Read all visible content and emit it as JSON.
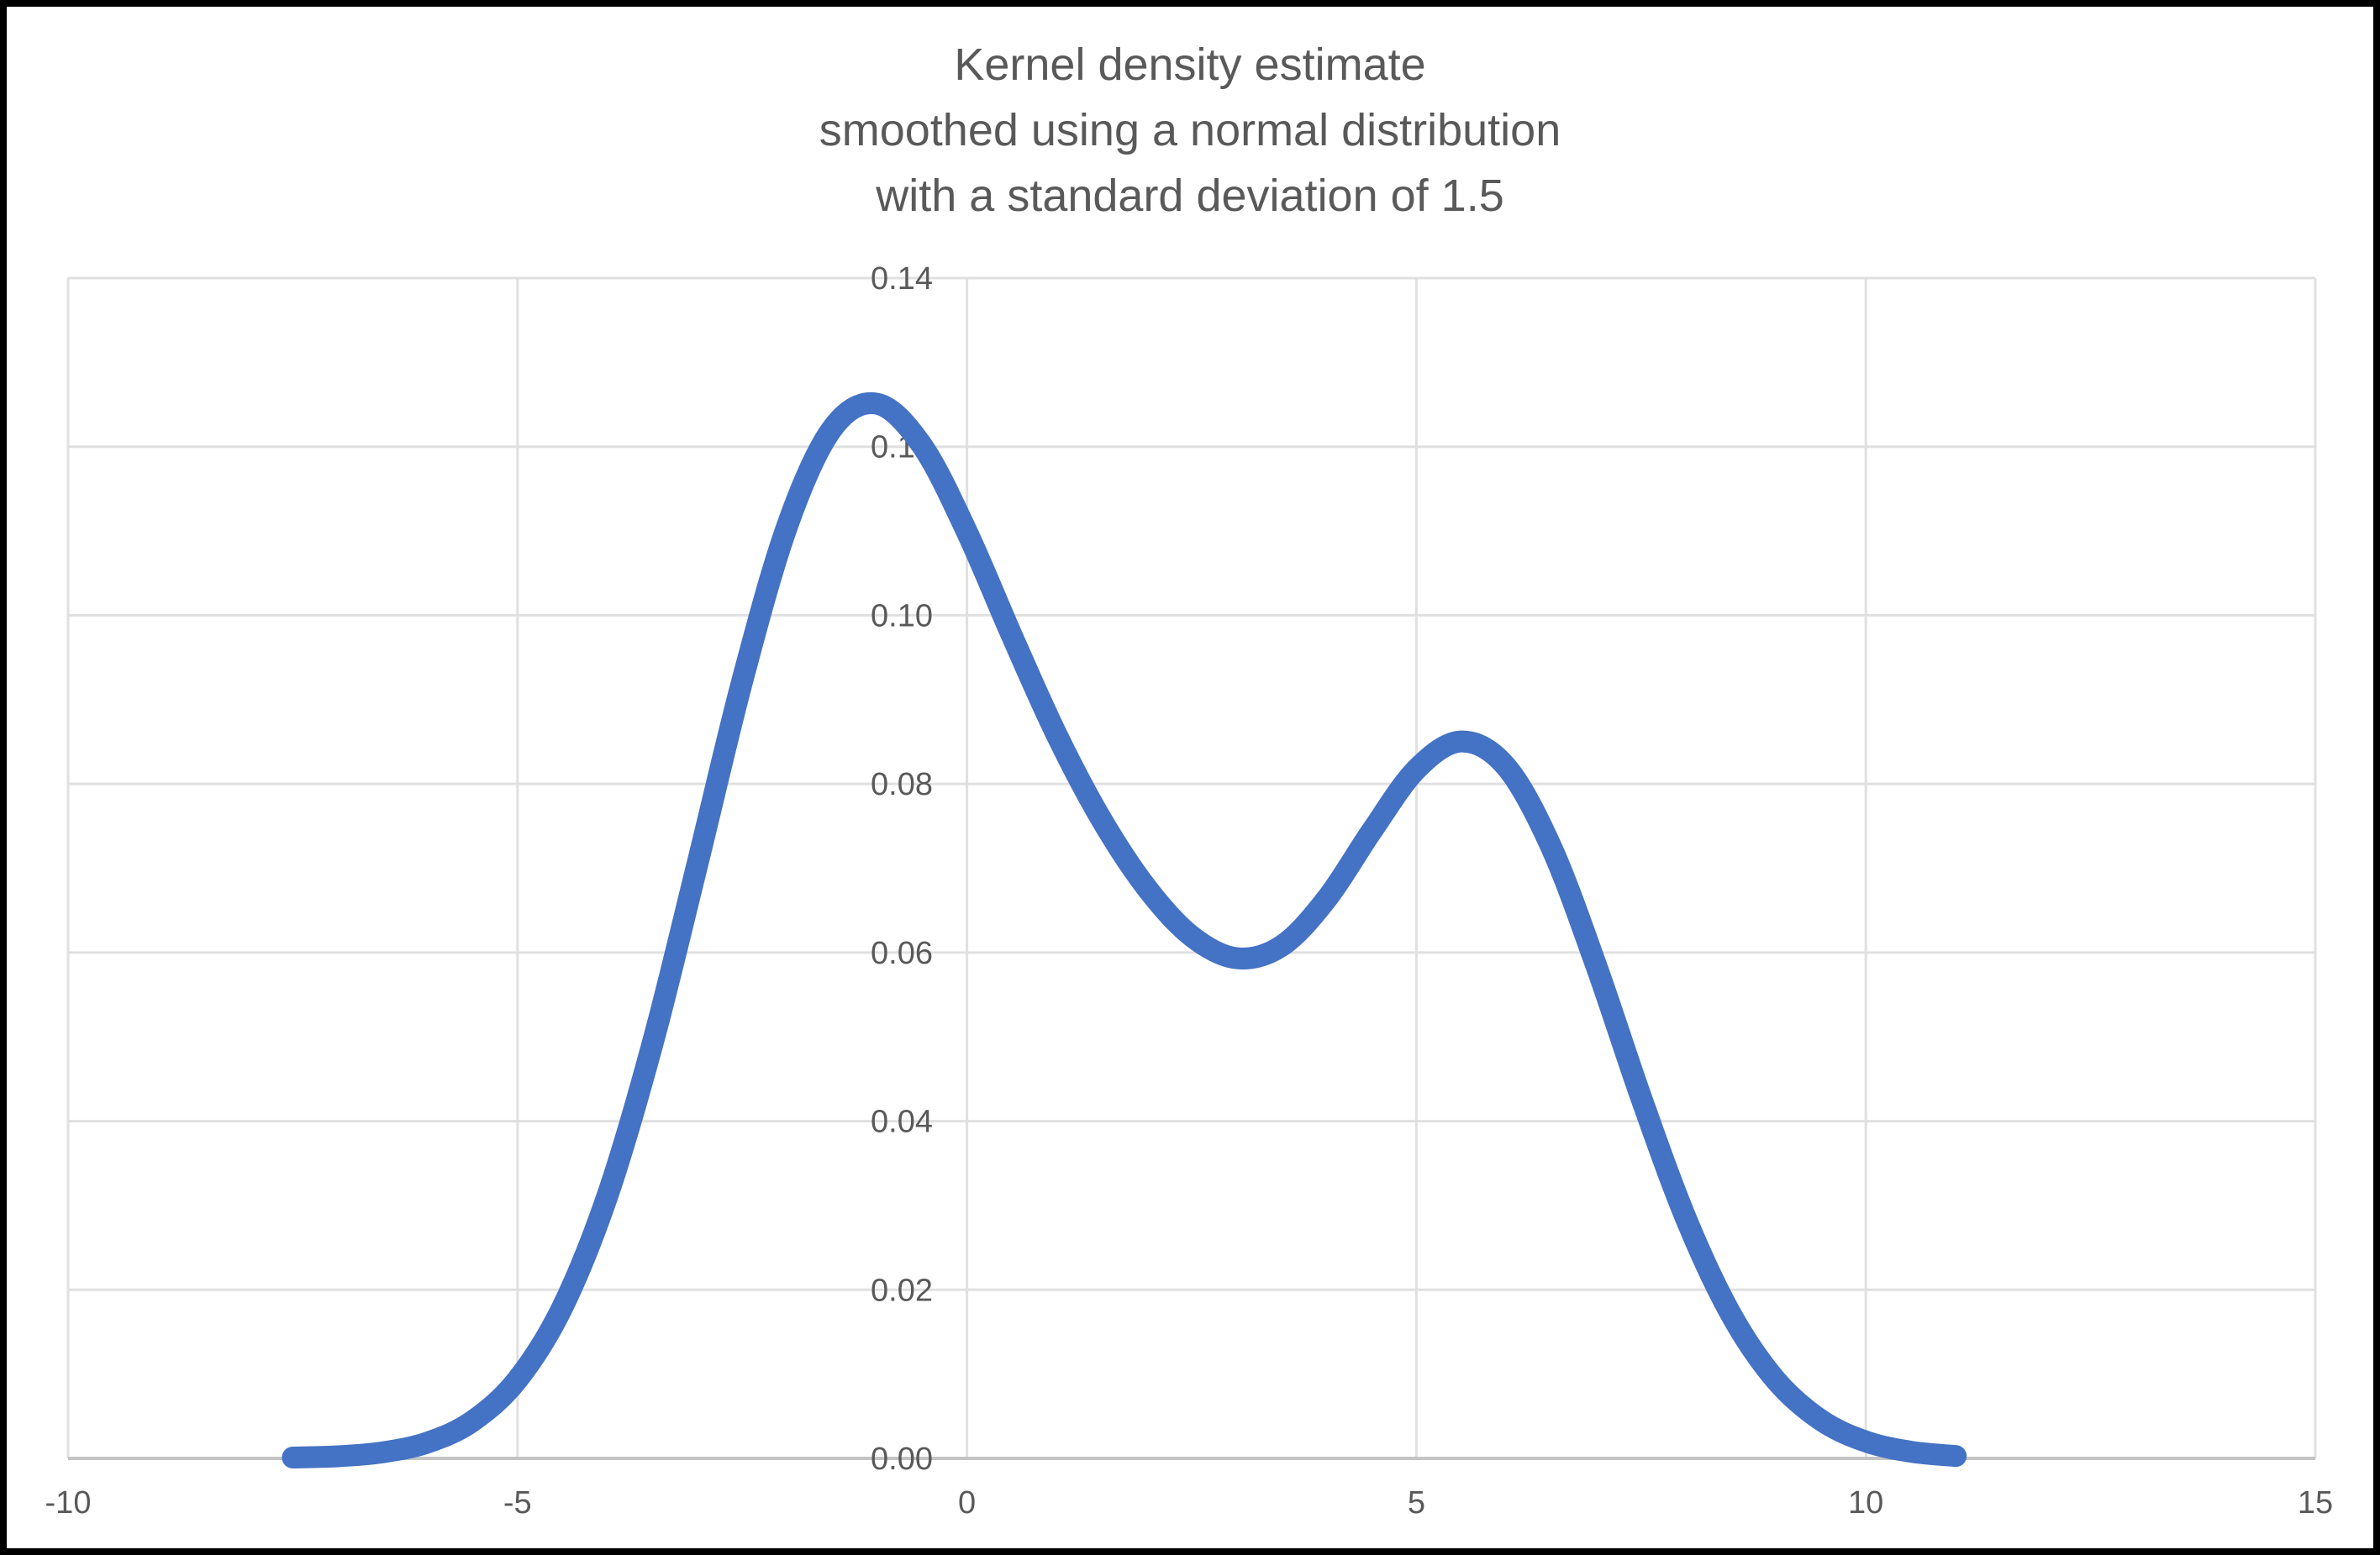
{
  "title": {
    "lines": [
      "Kernel density estimate",
      "smoothed using a normal distribution",
      "with a standard deviation of 1.5"
    ]
  },
  "chart_data": {
    "type": "line",
    "title": "Kernel density estimate smoothed using a normal distribution with a standard deviation of 1.5",
    "xlabel": "",
    "ylabel": "",
    "xlim": [
      -10,
      15
    ],
    "ylim": [
      0,
      0.14
    ],
    "x_ticks": [
      "-10",
      "-5",
      "0",
      "5",
      "10",
      "15"
    ],
    "y_ticks": [
      "0.00",
      "0.02",
      "0.04",
      "0.06",
      "0.08",
      "0.10",
      "0.12",
      "0.14"
    ],
    "grid": true,
    "legend": "none",
    "series": [
      {
        "name": "kernel density estimate",
        "x": [
          -7.5,
          -7.0,
          -6.5,
          -6.0,
          -5.5,
          -5.0,
          -4.5,
          -4.0,
          -3.5,
          -3.0,
          -2.5,
          -2.0,
          -1.5,
          -1.0,
          -0.5,
          0.0,
          0.5,
          1.0,
          1.5,
          2.0,
          2.5,
          3.0,
          3.5,
          4.0,
          4.5,
          5.0,
          5.5,
          6.0,
          6.5,
          7.0,
          7.5,
          8.0,
          8.5,
          9.0,
          9.5,
          10.0,
          10.5,
          11.0
        ],
        "y": [
          0.0001,
          0.00025,
          0.00072,
          0.00188,
          0.00441,
          0.00935,
          0.01794,
          0.03115,
          0.04909,
          0.07043,
          0.0922,
          0.11059,
          0.12213,
          0.12509,
          0.12014,
          0.10988,
          0.09758,
          0.08578,
          0.07572,
          0.06767,
          0.06193,
          0.05933,
          0.06078,
          0.06633,
          0.07435,
          0.08173,
          0.08504,
          0.08203,
          0.07252,
          0.05846,
          0.04281,
          0.02842,
          0.01708,
          0.00927,
          0.00454,
          0.002,
          0.00079,
          0.00028
        ]
      }
    ]
  },
  "style": {
    "line_color": "#4472C4",
    "grid_color": "#E0E0E0",
    "axis_color": "#C4C4C4",
    "text_color": "#595959",
    "background_color": "#FFFFFF",
    "frame_color": "#000000"
  }
}
